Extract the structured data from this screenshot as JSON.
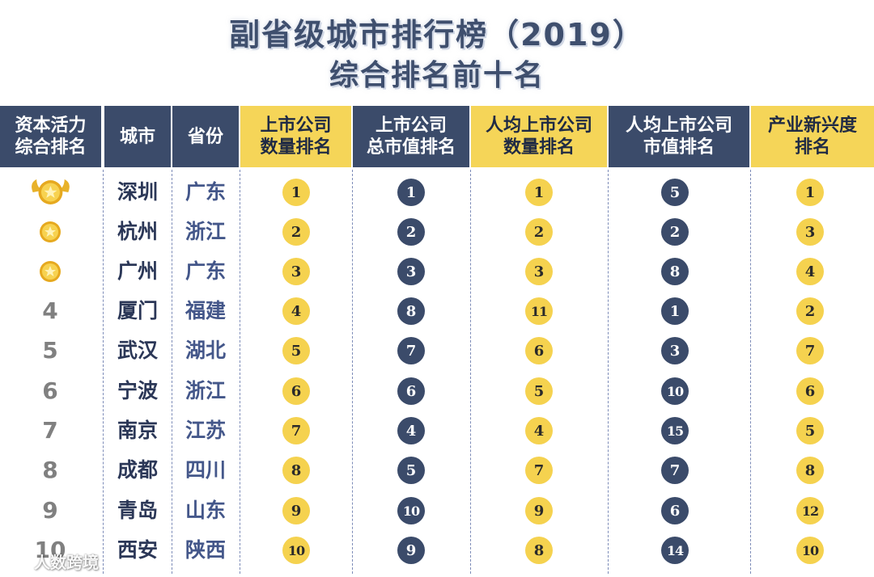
{
  "title": {
    "line1": "副省级城市排行榜（2019）",
    "line2": "综合排名前十名"
  },
  "headers": [
    {
      "label": "资本活力\n综合排名",
      "style": "dark"
    },
    {
      "label": "城市",
      "style": "dark"
    },
    {
      "label": "省份",
      "style": "dark"
    },
    {
      "label": "上市公司\n数量排名",
      "style": "yellow"
    },
    {
      "label": "上市公司\n总市值排名",
      "style": "dark"
    },
    {
      "label": "人均上市公司\n数量排名",
      "style": "yellow"
    },
    {
      "label": "人均上市公司\n市值排名",
      "style": "dark"
    },
    {
      "label": "产业新兴度\n排名",
      "style": "yellow"
    }
  ],
  "rows": [
    {
      "rank": "1",
      "medal": "gold-large",
      "city": "深圳",
      "province": "广东",
      "listed_count": "1",
      "market_cap": "1",
      "per_capita_count": "1",
      "per_capita_cap": "5",
      "emerging": "1"
    },
    {
      "rank": "2",
      "medal": "gold",
      "city": "杭州",
      "province": "浙江",
      "listed_count": "2",
      "market_cap": "2",
      "per_capita_count": "2",
      "per_capita_cap": "2",
      "emerging": "3"
    },
    {
      "rank": "3",
      "medal": "gold",
      "city": "广州",
      "province": "广东",
      "listed_count": "3",
      "market_cap": "3",
      "per_capita_count": "3",
      "per_capita_cap": "8",
      "emerging": "4"
    },
    {
      "rank": "4",
      "medal": "",
      "city": "厦门",
      "province": "福建",
      "listed_count": "4",
      "market_cap": "8",
      "per_capita_count": "11",
      "per_capita_cap": "1",
      "emerging": "2"
    },
    {
      "rank": "5",
      "medal": "",
      "city": "武汉",
      "province": "湖北",
      "listed_count": "5",
      "market_cap": "7",
      "per_capita_count": "6",
      "per_capita_cap": "3",
      "emerging": "7"
    },
    {
      "rank": "6",
      "medal": "",
      "city": "宁波",
      "province": "浙江",
      "listed_count": "6",
      "market_cap": "6",
      "per_capita_count": "5",
      "per_capita_cap": "10",
      "emerging": "6"
    },
    {
      "rank": "7",
      "medal": "",
      "city": "南京",
      "province": "江苏",
      "listed_count": "7",
      "market_cap": "4",
      "per_capita_count": "4",
      "per_capita_cap": "15",
      "emerging": "5"
    },
    {
      "rank": "8",
      "medal": "",
      "city": "成都",
      "province": "四川",
      "listed_count": "8",
      "market_cap": "5",
      "per_capita_count": "7",
      "per_capita_cap": "7",
      "emerging": "8"
    },
    {
      "rank": "9",
      "medal": "",
      "city": "青岛",
      "province": "山东",
      "listed_count": "9",
      "market_cap": "10",
      "per_capita_count": "9",
      "per_capita_cap": "6",
      "emerging": "12"
    },
    {
      "rank": "10",
      "medal": "",
      "city": "西安",
      "province": "陕西",
      "listed_count": "10",
      "market_cap": "9",
      "per_capita_count": "8",
      "per_capita_cap": "14",
      "emerging": "10"
    }
  ],
  "watermark": {
    "text": "人数跨境",
    "icon": "weibo-logo-icon"
  },
  "colors": {
    "navy": "#3b4b6a",
    "yellow": "#f5d558",
    "title": "#3f4f6e",
    "gold": "#f2c235"
  }
}
